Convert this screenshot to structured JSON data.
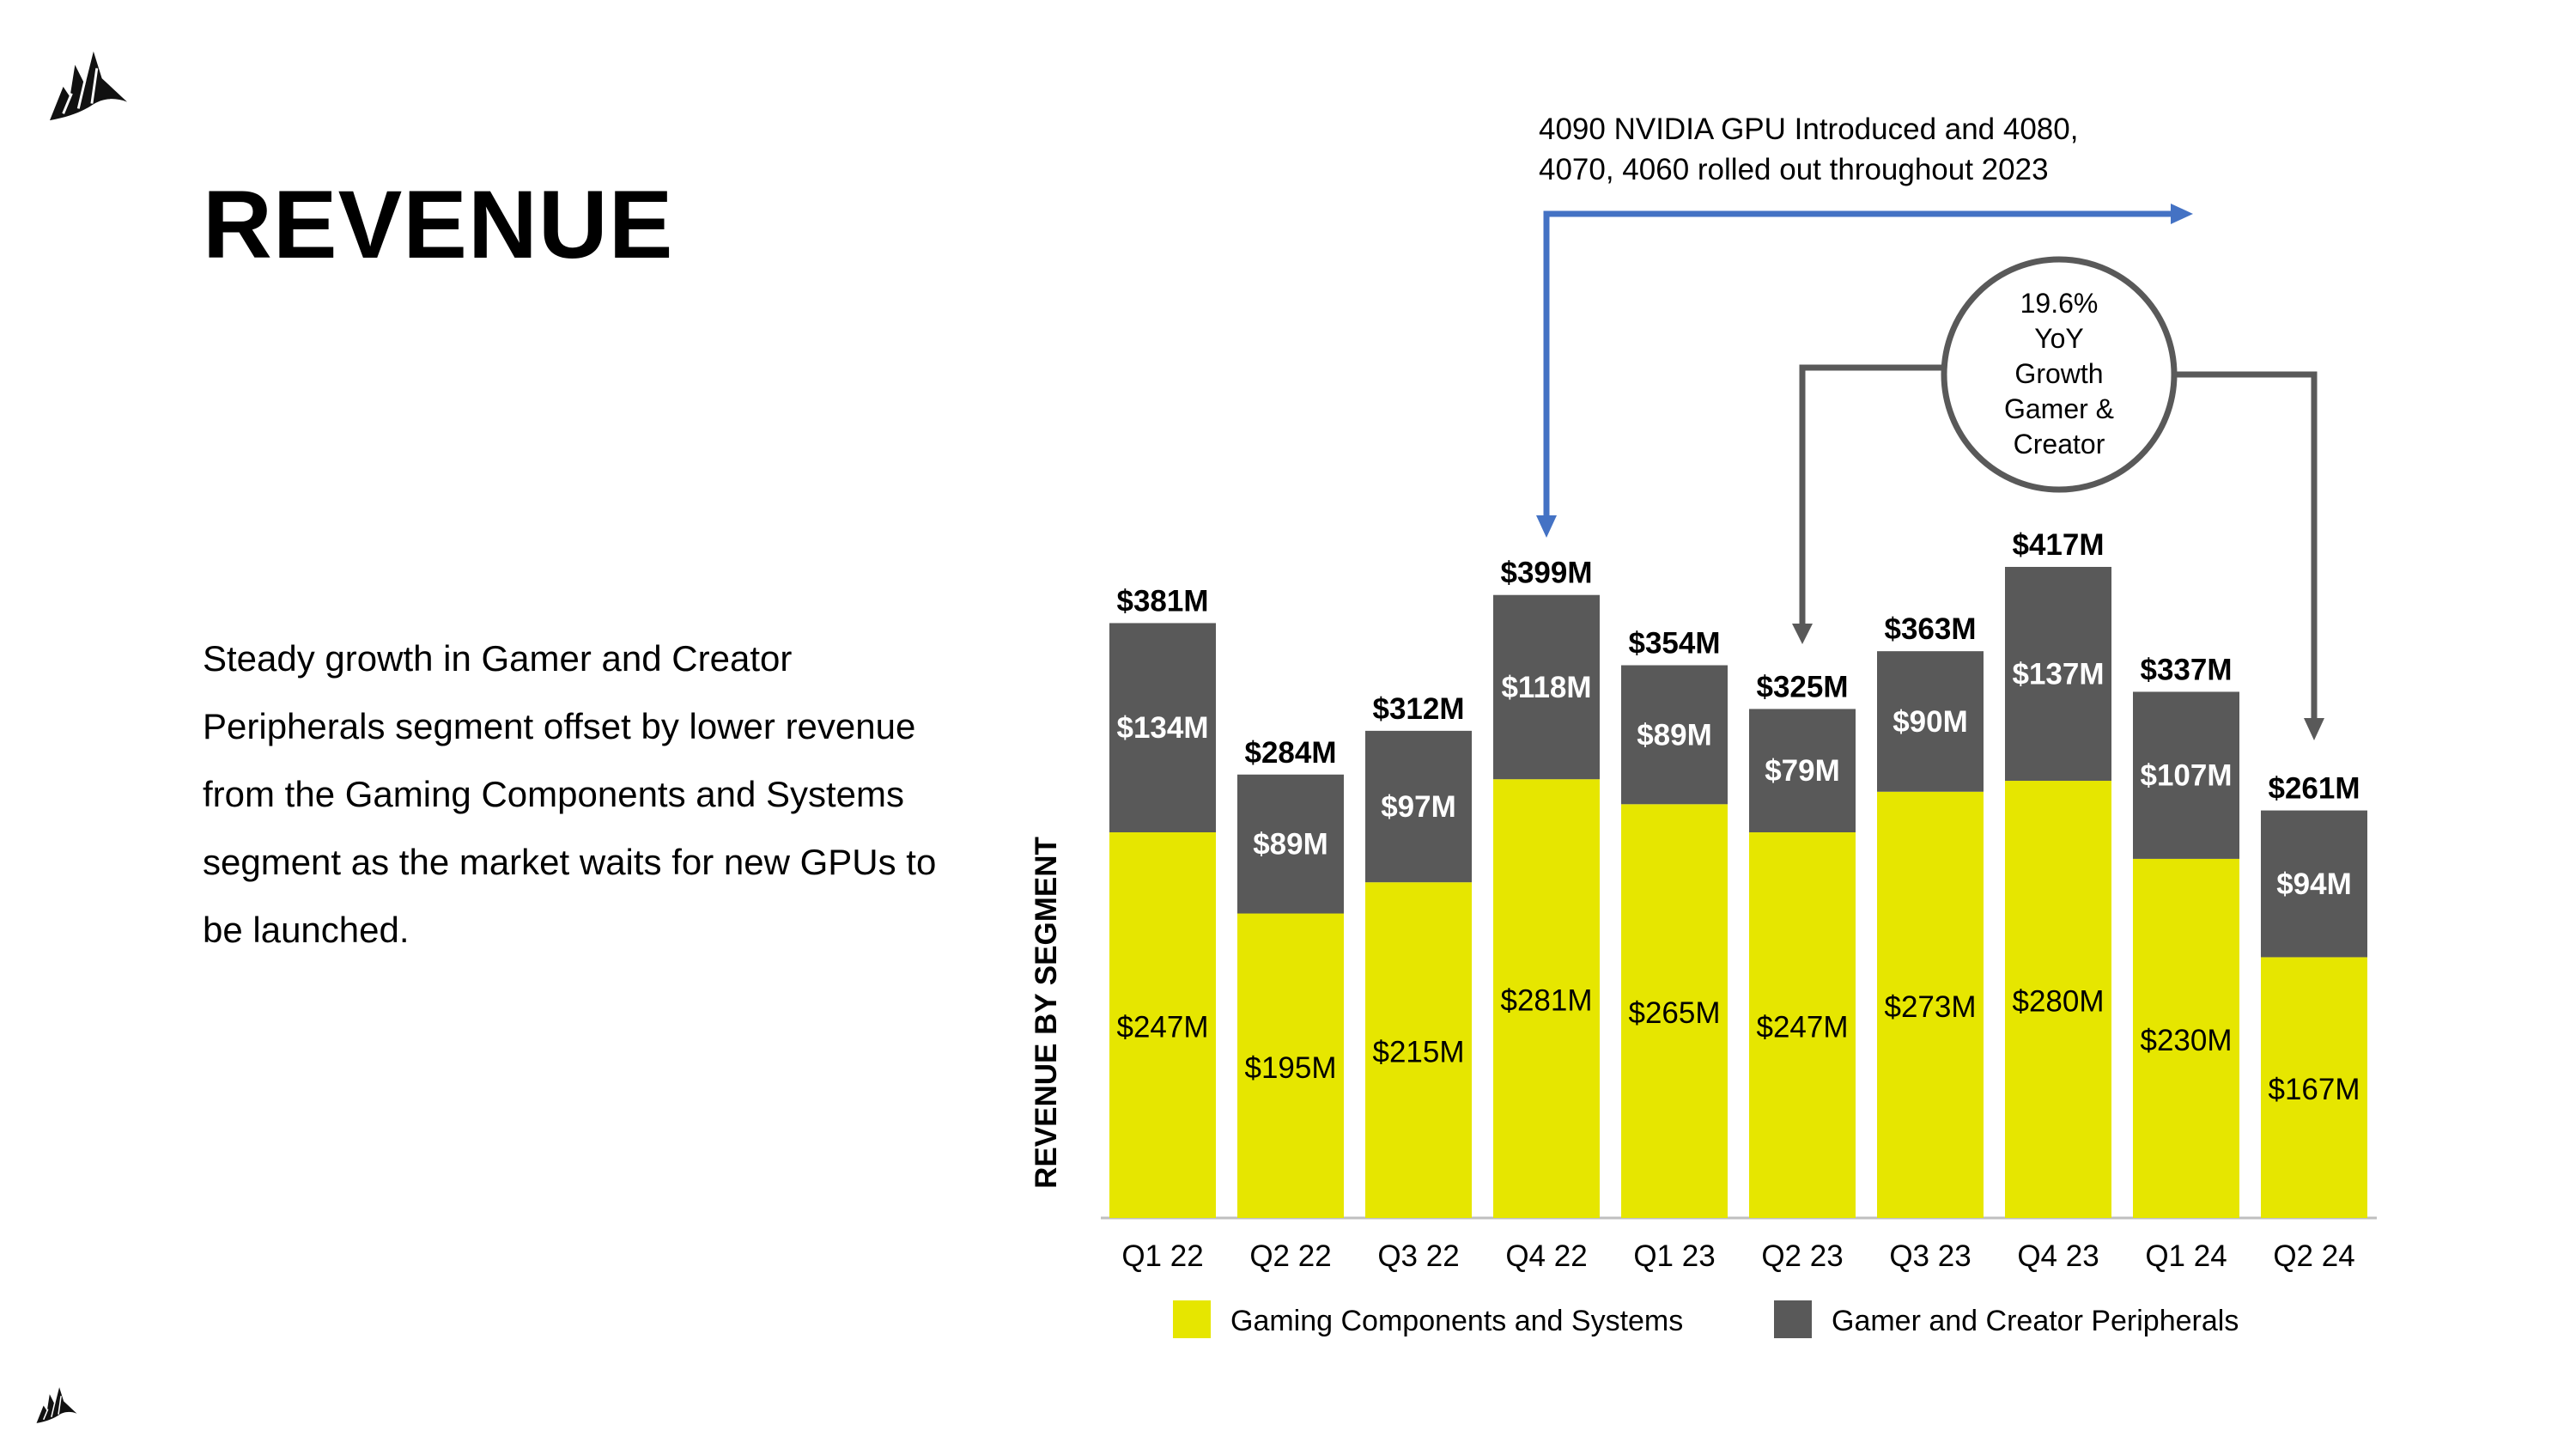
{
  "page": {
    "title": "REVENUE",
    "description": "Steady growth in Gamer and Creator Peripherals segment offset by lower revenue from the Gaming Components and Systems segment as the market waits for new GPUs to be launched."
  },
  "colors": {
    "gaming": "#e6e600",
    "peripherals": "#595959",
    "annotation_arrow": "#4472c4",
    "bracket": "#595959"
  },
  "chart_data": {
    "type": "bar",
    "stacked": true,
    "ylabel": "REVENUE BY SEGMENT",
    "xlabel": "",
    "categories": [
      "Q1 22",
      "Q2 22",
      "Q3 22",
      "Q4 22",
      "Q1 23",
      "Q2 23",
      "Q3 23",
      "Q4 23",
      "Q1 24",
      "Q2 24"
    ],
    "series": [
      {
        "name": "Gaming Components and Systems",
        "values": [
          247,
          195,
          215,
          281,
          265,
          247,
          273,
          280,
          230,
          167
        ]
      },
      {
        "name": "Gamer and Creator Peripherals",
        "values": [
          134,
          89,
          97,
          118,
          89,
          79,
          90,
          137,
          107,
          94
        ]
      }
    ],
    "totals": [
      381,
      284,
      312,
      399,
      354,
      325,
      363,
      417,
      337,
      261
    ],
    "value_prefix": "$",
    "value_suffix": "M",
    "ylim": [
      0,
      417
    ],
    "legend": "bottom",
    "annotations": {
      "gpu_lines": [
        "4090 NVIDIA GPU Introduced and 4080,",
        "4070, 4060 rolled out throughout 2023"
      ],
      "gpu_arrow_start_category": "Q4 22",
      "growth_bubble_lines": [
        "19.6%",
        "YoY",
        "Growth",
        "Gamer &",
        "Creator"
      ],
      "growth_from_category": "Q2 23",
      "growth_to_category": "Q2 24"
    }
  }
}
